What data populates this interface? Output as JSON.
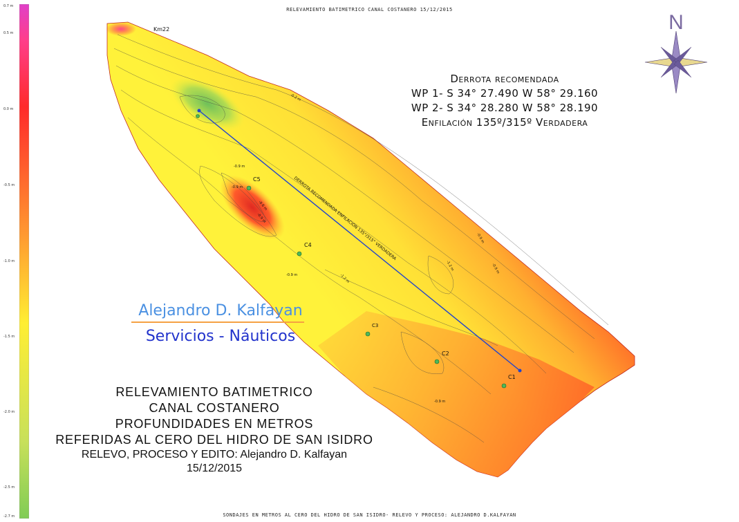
{
  "header": {
    "title": "RELEVAMIENTO BATIMETRICO CANAL COSTANERO  15/12/2015"
  },
  "footer": {
    "caption": "SONDAJES EN METROS AL CERO DEL HIDRO DE SAN ISIDRO- RELEVO Y PROCESO: ALEJANDRO D.KALFAYAN"
  },
  "scale_bar": {
    "labels": [
      "0.7 m",
      "0.5 m",
      "0.0 m",
      "-0.5 m",
      "-1.0 m",
      "-1.5 m",
      "-2.0 m",
      "-2.5 m",
      "-2.7 m"
    ],
    "colors": {
      "top": "#e040c8",
      "high": "#ff2a2a",
      "mid": "#ffee33",
      "low": "#80cc55"
    }
  },
  "compass": {
    "letter": "N",
    "color": "#7a6aa0"
  },
  "route": {
    "title": "Derrota recomendada",
    "wp1": "WP 1- S 34° 27.490 W 58° 29.160",
    "wp2": "WP 2- S 34° 28.280 W 58° 28.190",
    "bearing": "Enfilación 135º/315º Verdadera",
    "line_label": "DERROTA RECOMENDADA  ENFILACION 135°/315° VERDADERA",
    "line_color": "#2244cc"
  },
  "company": {
    "name": "Alejandro D. Kalfayan",
    "subtitle": "Servicios - Náuticos"
  },
  "survey": {
    "line1": "RELEVAMIENTO BATIMETRICO",
    "line2": "CANAL COSTANERO",
    "line3": "PROFUNDIDADES EN METROS",
    "line4": "REFERIDAS AL CERO DEL HIDRO DE SAN ISIDRO",
    "line5": "RELEVO, PROCESO Y EDITO: Alejandro D. Kalfayan",
    "line6": "15/12/2015"
  },
  "map": {
    "km_label": "Km22",
    "stations": [
      "C1",
      "C2",
      "C3",
      "C4",
      "C5"
    ],
    "contour_labels": [
      "-0.2 m",
      "-0.9 m",
      "-0.9 m",
      "-0.6 m",
      "-0.9 m",
      "-0.9 m",
      "-1.2 m",
      "-1.2 m",
      "-0.9 m",
      "-0.9 m",
      "-0.9 m"
    ]
  }
}
